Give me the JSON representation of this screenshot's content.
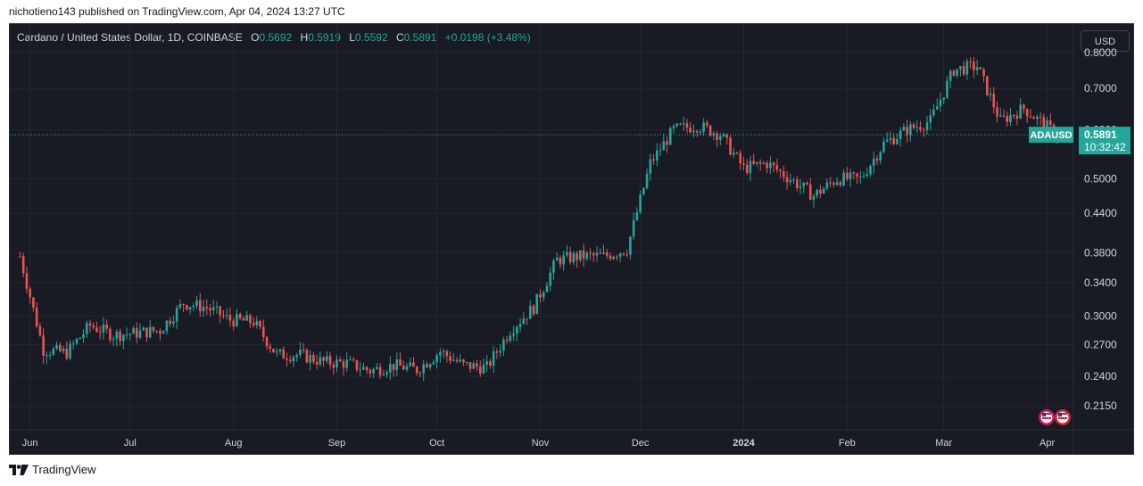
{
  "header": {
    "publisher_line": "nichotieno143 published on TradingView.com, Apr 04, 2024 13:27 UTC"
  },
  "legend": {
    "symbol": "Cardano / United States Dollar, 1D, COINBASE",
    "o_label": "O",
    "o_value": "0.5692",
    "h_label": "H",
    "h_value": "0.5919",
    "l_label": "L",
    "l_value": "0.5592",
    "c_label": "C",
    "c_value": "0.5891",
    "change": "+0.0198 (+3.48%)"
  },
  "currency_button": "USD",
  "price_tag": {
    "ticker": "ADAUSD",
    "price": "0.5891",
    "countdown": "10:32:42"
  },
  "footer": {
    "brand": "TradingView"
  },
  "colors": {
    "up": "#26a69a",
    "down": "#ef5350",
    "background": "#181a24",
    "grid": "#242733",
    "text": "#d1d4dc"
  },
  "chart_data": {
    "type": "candlestick",
    "ticker": "ADAUSD",
    "exchange": "COINBASE",
    "interval": "1D",
    "yaxis": {
      "ticks": [
        "0.8000",
        "0.7000",
        "0.6000",
        "0.5000",
        "0.4400",
        "0.3800",
        "0.3400",
        "0.3000",
        "0.2700",
        "0.2400",
        "0.2150"
      ],
      "scale": "log",
      "ylim": [
        0.2,
        0.86
      ]
    },
    "xaxis": {
      "ticks": [
        "Jun",
        "Jul",
        "Aug",
        "Sep",
        "Oct",
        "Nov",
        "Dec",
        "2024",
        "Feb",
        "Mar",
        "Apr"
      ]
    },
    "current_price": 0.5891,
    "weekly_close_approx": [
      {
        "date": "2023-05-29",
        "close": 0.375
      },
      {
        "date": "2023-06-05",
        "close": 0.265
      },
      {
        "date": "2023-06-12",
        "close": 0.262
      },
      {
        "date": "2023-06-19",
        "close": 0.29
      },
      {
        "date": "2023-06-26",
        "close": 0.28
      },
      {
        "date": "2023-07-03",
        "close": 0.282
      },
      {
        "date": "2023-07-10",
        "close": 0.285
      },
      {
        "date": "2023-07-17",
        "close": 0.315
      },
      {
        "date": "2023-07-24",
        "close": 0.31
      },
      {
        "date": "2023-07-31",
        "close": 0.296
      },
      {
        "date": "2023-08-07",
        "close": 0.294
      },
      {
        "date": "2023-08-14",
        "close": 0.26
      },
      {
        "date": "2023-08-21",
        "close": 0.26
      },
      {
        "date": "2023-08-28",
        "close": 0.253
      },
      {
        "date": "2023-09-04",
        "close": 0.252
      },
      {
        "date": "2023-09-11",
        "close": 0.245
      },
      {
        "date": "2023-09-18",
        "close": 0.25
      },
      {
        "date": "2023-09-25",
        "close": 0.246
      },
      {
        "date": "2023-10-02",
        "close": 0.263
      },
      {
        "date": "2023-10-09",
        "close": 0.25
      },
      {
        "date": "2023-10-16",
        "close": 0.248
      },
      {
        "date": "2023-10-23",
        "close": 0.285
      },
      {
        "date": "2023-10-30",
        "close": 0.31
      },
      {
        "date": "2023-11-06",
        "close": 0.37
      },
      {
        "date": "2023-11-13",
        "close": 0.375
      },
      {
        "date": "2023-11-20",
        "close": 0.375
      },
      {
        "date": "2023-11-27",
        "close": 0.385
      },
      {
        "date": "2023-12-04",
        "close": 0.53
      },
      {
        "date": "2023-12-11",
        "close": 0.6
      },
      {
        "date": "2023-12-18",
        "close": 0.61
      },
      {
        "date": "2023-12-25",
        "close": 0.59
      },
      {
        "date": "2024-01-01",
        "close": 0.52
      },
      {
        "date": "2024-01-08",
        "close": 0.53
      },
      {
        "date": "2024-01-15",
        "close": 0.5
      },
      {
        "date": "2024-01-22",
        "close": 0.47
      },
      {
        "date": "2024-01-29",
        "close": 0.5
      },
      {
        "date": "2024-02-05",
        "close": 0.5
      },
      {
        "date": "2024-02-12",
        "close": 0.57
      },
      {
        "date": "2024-02-19",
        "close": 0.6
      },
      {
        "date": "2024-02-26",
        "close": 0.62
      },
      {
        "date": "2024-03-04",
        "close": 0.75
      },
      {
        "date": "2024-03-11",
        "close": 0.76
      },
      {
        "date": "2024-03-18",
        "close": 0.62
      },
      {
        "date": "2024-03-25",
        "close": 0.65
      },
      {
        "date": "2024-04-04",
        "close": 0.5891
      }
    ]
  }
}
